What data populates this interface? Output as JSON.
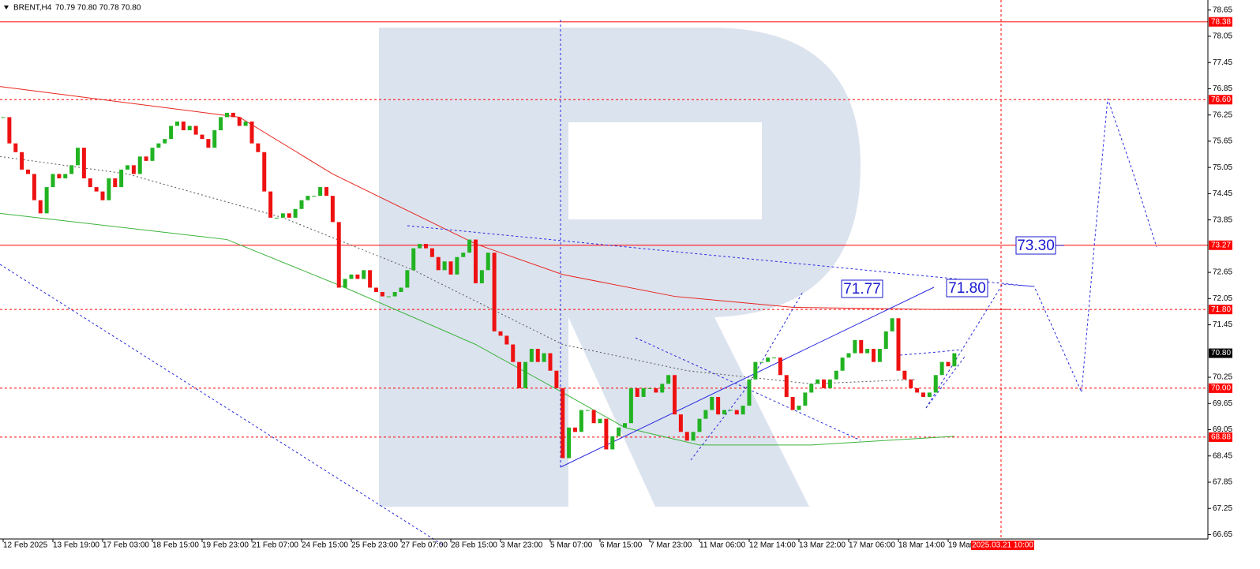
{
  "header": {
    "symbol": "BRENT,H4",
    "quote": "70.79 70.80 70.78 70.80"
  },
  "chart_data": {
    "type": "candlestick",
    "values": [
      76.2,
      75.6,
      75.4,
      75.0,
      74.9,
      74.3,
      74.0,
      74.6,
      74.9,
      74.8,
      74.9,
      75.1,
      75.5,
      74.8,
      74.6,
      74.5,
      74.3,
      74.8,
      74.6,
      75.0,
      75.1,
      74.9,
      75.3,
      75.2,
      75.5,
      75.6,
      75.7,
      76.0,
      76.1,
      75.9,
      76.0,
      75.8,
      75.7,
      75.5,
      75.9,
      76.2,
      76.3,
      76.2,
      76.0,
      76.1,
      75.6,
      75.4,
      74.5,
      73.9,
      73.9,
      74.0,
      73.9,
      74.1,
      74.3,
      74.4,
      74.4,
      74.6,
      74.4,
      73.8,
      72.3,
      72.5,
      72.6,
      72.5,
      72.7,
      72.3,
      72.2,
      72.1,
      72.1,
      72.2,
      72.3,
      72.7,
      73.2,
      73.3,
      73.2,
      73.0,
      72.7,
      72.9,
      72.6,
      73.0,
      73.1,
      73.4,
      72.4,
      72.7,
      73.1,
      71.3,
      71.2,
      71.0,
      70.6,
      70.0,
      70.6,
      70.9,
      70.6,
      70.8,
      70.4,
      70.0,
      68.4,
      69.1,
      69.0,
      69.5,
      69.5,
      69.2,
      69.3,
      68.6,
      68.9,
      69.1,
      69.2,
      70.0,
      69.8,
      70.0,
      70.0,
      69.9,
      70.1,
      70.3,
      69.4,
      69.0,
      68.8,
      69.0,
      69.3,
      69.5,
      69.8,
      69.4,
      69.5,
      69.5,
      69.4,
      69.6,
      70.2,
      70.6,
      70.6,
      70.7,
      70.7,
      70.3,
      69.8,
      69.5,
      69.6,
      69.9,
      70.1,
      70.2,
      70.0,
      70.2,
      70.4,
      70.7,
      70.8,
      71.1,
      70.8,
      70.9,
      70.6,
      70.9,
      71.3,
      71.6,
      70.4,
      70.2,
      70.0,
      69.9,
      69.8,
      69.9,
      70.3,
      70.6,
      70.5,
      70.8
    ],
    "colors": {
      "up": "#21b321",
      "down": "#ee1111"
    },
    "ylim": [
      66.55,
      78.88
    ],
    "yticks": [
      78.65,
      78.05,
      77.45,
      76.85,
      76.25,
      75.65,
      75.05,
      74.45,
      73.85,
      72.65,
      72.05,
      71.45,
      70.25,
      69.65,
      69.05,
      68.45,
      67.85,
      67.25,
      66.65
    ],
    "xticks": [
      {
        "value": 0,
        "label": "12 Feb 2025"
      },
      {
        "value": 8,
        "label": "13 Feb 19:00"
      },
      {
        "value": 16,
        "label": "17 Feb 03:00"
      },
      {
        "value": 24,
        "label": "18 Feb 15:00"
      },
      {
        "value": 32,
        "label": "19 Feb 23:00"
      },
      {
        "value": 40,
        "label": "21 Feb 07:00"
      },
      {
        "value": 48,
        "label": "24 Feb 15:00"
      },
      {
        "value": 56,
        "label": "25 Feb 23:00"
      },
      {
        "value": 64,
        "label": "27 Feb 07:00"
      },
      {
        "value": 72,
        "label": "28 Feb 15:00"
      },
      {
        "value": 80,
        "label": "3 Mar 23:00"
      },
      {
        "value": 88,
        "label": "5 Mar 07:00"
      },
      {
        "value": 96,
        "label": "6 Mar 15:00"
      },
      {
        "value": 104,
        "label": "7 Mar 23:00"
      },
      {
        "value": 112,
        "label": "11 Mar 06:00"
      },
      {
        "value": 120,
        "label": "12 Mar 14:00"
      },
      {
        "value": 128,
        "label": "13 Mar 22:00"
      },
      {
        "value": 136,
        "label": "17 Mar 06:00"
      },
      {
        "value": 144,
        "label": "18 Mar 14:00"
      },
      {
        "value": 152,
        "label": "19 Mar"
      }
    ],
    "levels": [
      {
        "value": 78.38,
        "dashed": false
      },
      {
        "value": 76.6,
        "label": "76.60",
        "dashed": true
      },
      {
        "value": 73.27,
        "dashed": false
      },
      {
        "value": 71.8,
        "label": "71.80",
        "dashed": true
      },
      {
        "value": 70,
        "label": "70.00",
        "dashed": true
      },
      {
        "value": 68.88,
        "dashed": true
      }
    ],
    "level_color": "#ff0000",
    "last_price": {
      "value": 70.8,
      "label": "70.80"
    },
    "overlays": [
      {
        "color": "#e8261f",
        "dashed": false,
        "x": [
          -0.5,
          38,
          53,
          76,
          90,
          108,
          127,
          150,
          162
        ],
        "values": [
          76.9,
          76.2,
          74.9,
          73.3,
          72.6,
          72.1,
          71.85,
          71.8,
          71.8
        ]
      },
      {
        "color": "#3cb43c",
        "dashed": false,
        "x": [
          -0.5,
          36,
          55,
          76,
          90,
          100,
          112,
          130,
          153
        ],
        "values": [
          74.0,
          73.4,
          72.3,
          71.0,
          69.9,
          69.1,
          68.7,
          68.7,
          68.9
        ]
      },
      {
        "color": "#555555",
        "dashed": true,
        "x": [
          -0.5,
          20,
          45,
          66,
          90,
          110,
          130,
          147
        ],
        "values": [
          75.3,
          74.9,
          73.9,
          72.7,
          71.0,
          70.4,
          70.1,
          70.2
        ]
      }
    ],
    "annotations": [
      "73.30",
      "71.77",
      "71.80"
    ],
    "time_marker": "2025.03.21 10:00"
  }
}
